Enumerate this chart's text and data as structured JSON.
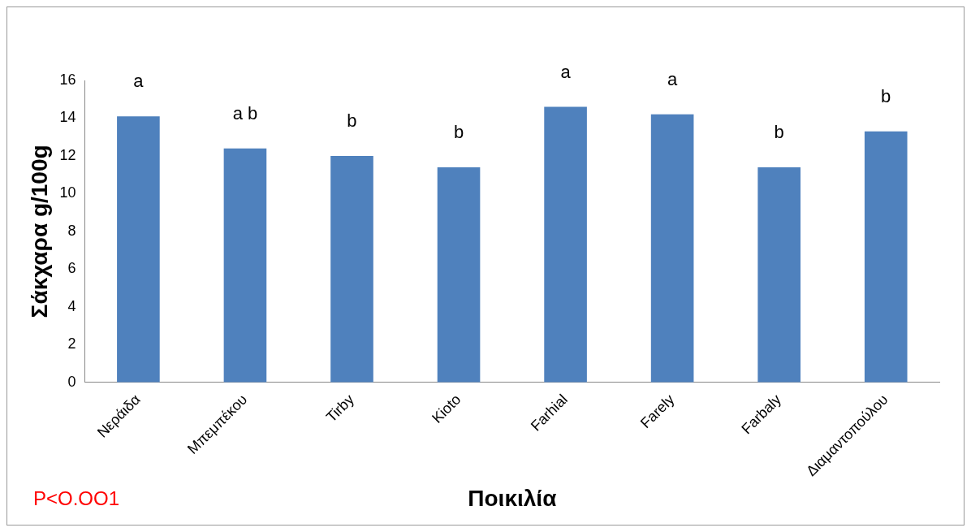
{
  "chart_data": {
    "type": "bar",
    "xlabel": "Ποικιλία",
    "ylabel": "Σάκχαρα g/100g",
    "categories": [
      "Νεράιδα",
      "Μπεμπέκου",
      "Tirby",
      "Kioto",
      "Farhial",
      "Farely",
      "Farbaly",
      "Διαμαντοπούλου"
    ],
    "values": [
      14.1,
      12.4,
      12.0,
      11.4,
      14.6,
      14.2,
      11.4,
      13.3
    ],
    "color": "#4f81bd",
    "ylim": [
      0,
      16
    ],
    "yticks": [
      0,
      2,
      4,
      6,
      8,
      10,
      12,
      14,
      16
    ],
    "grid": false,
    "legend": false,
    "annotations": [
      "a",
      "a b",
      "b",
      "b",
      "a",
      "a",
      "b",
      "b",
      "P<O.OO1"
    ]
  }
}
